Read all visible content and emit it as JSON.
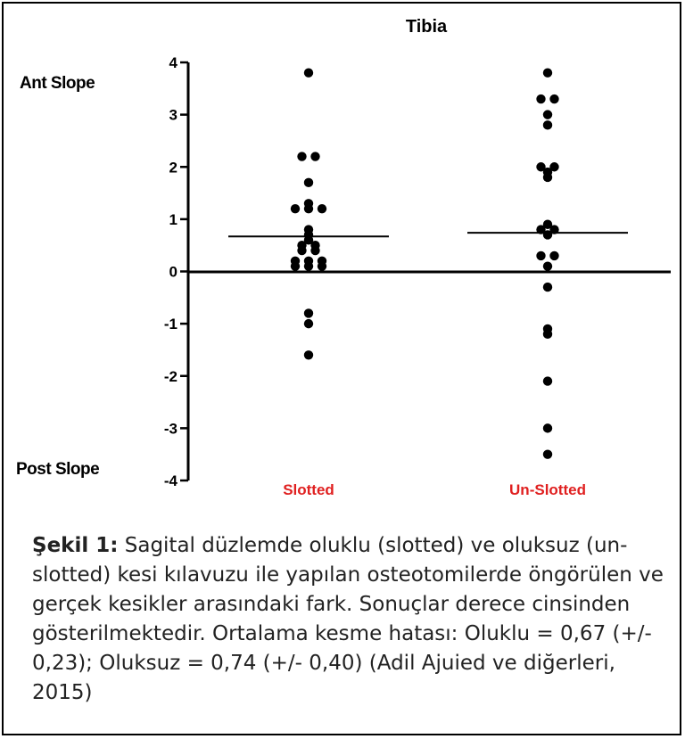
{
  "chart_data": {
    "type": "scatter",
    "title": "Tibia",
    "top_label": "Ant Slope",
    "bottom_label": "Post Slope",
    "ylim": [
      -4,
      4
    ],
    "yticks": [
      4,
      3,
      2,
      1,
      0,
      -1,
      -2,
      -3,
      -4
    ],
    "categories": [
      "Slotted",
      "Un-Slotted"
    ],
    "category_color": "#e02020",
    "series": [
      {
        "values": [
          3.8,
          2.2,
          2.2,
          1.7,
          1.3,
          1.2,
          1.2,
          1.2,
          0.8,
          0.7,
          0.6,
          0.5,
          0.5,
          0.4,
          0.4,
          0.2,
          0.2,
          0.2,
          0.1,
          0.1,
          0.1,
          -0.8,
          -1.0,
          -1.6
        ],
        "mean": 0.67
      },
      {
        "values": [
          3.8,
          3.3,
          3.3,
          3.0,
          2.8,
          2.0,
          2.0,
          1.9,
          1.8,
          0.9,
          0.8,
          0.8,
          0.7,
          0.3,
          0.3,
          0.1,
          -0.3,
          -1.1,
          -1.2,
          -2.1,
          -3.0,
          -3.5
        ],
        "mean": 0.74
      }
    ]
  },
  "caption": {
    "label": "Şekil 1:",
    "text": " Sagital düzlemde oluklu (slotted) ve oluksuz (un-slotted) kesi kılavuzu ile yapılan osteotomilerde öngörülen ve gerçek kesikler arasındaki fark. Sonuçlar derece cinsinden gösterilmektedir.  Ortalama kesme hatası: Oluklu = 0,67 (+/- 0,23); Oluksuz = 0,74 (+/- 0,40) (Adil Ajuied ve diğerleri, 2015)"
  }
}
